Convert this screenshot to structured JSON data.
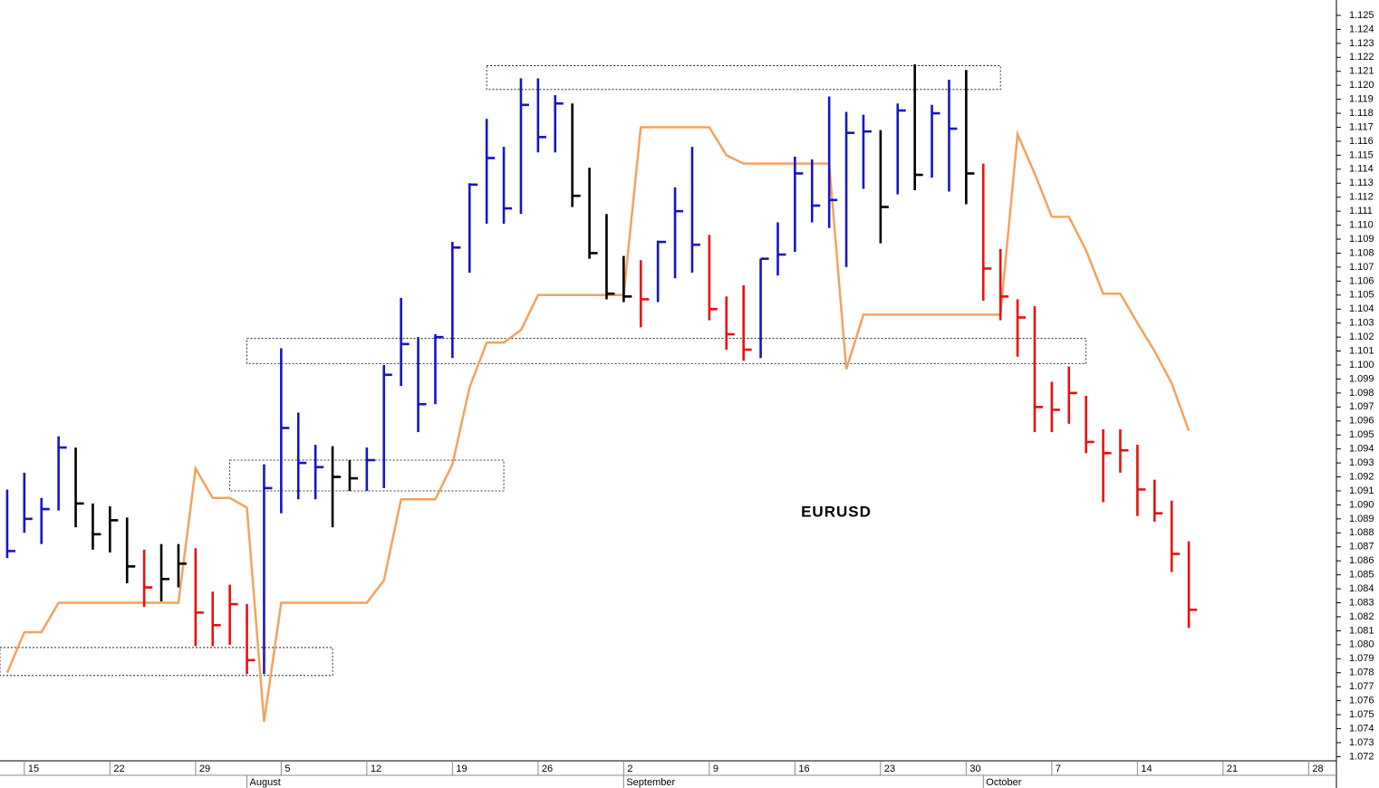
{
  "chart_data": {
    "type": "ohlc",
    "annotation": "EURUSD",
    "x": [
      0,
      1,
      2,
      3,
      4,
      5,
      6,
      7,
      8,
      9,
      10,
      11,
      12,
      13,
      14,
      15,
      16,
      17,
      18,
      19,
      20,
      21,
      22,
      23,
      24,
      25,
      26,
      27,
      28,
      29,
      30,
      31,
      32,
      33,
      34,
      35,
      36,
      37,
      38,
      39,
      40,
      41,
      42,
      43,
      44,
      45,
      46,
      47,
      48,
      49,
      50,
      51,
      52,
      53,
      54,
      55,
      56,
      57,
      58,
      59,
      60,
      61,
      62,
      63,
      64,
      65,
      66,
      67,
      68,
      69
    ],
    "high": [
      1.0911,
      1.0923,
      1.0905,
      1.0949,
      1.0941,
      1.0901,
      1.0899,
      1.0891,
      1.0868,
      1.0872,
      1.0872,
      1.0869,
      1.0838,
      1.0843,
      1.0829,
      1.0929,
      1.1012,
      1.0966,
      1.0943,
      1.0942,
      1.0932,
      1.0941,
      1.1,
      1.1048,
      1.102,
      1.1022,
      1.1088,
      1.113,
      1.1176,
      1.1156,
      1.1205,
      1.1205,
      1.1193,
      1.1187,
      1.1141,
      1.1108,
      1.1078,
      1.1075,
      1.1089,
      1.1127,
      1.1156,
      1.1093,
      1.1049,
      1.1057,
      1.1076,
      1.1102,
      1.1149,
      1.1147,
      1.1192,
      1.1181,
      1.1179,
      1.1168,
      1.1187,
      1.1215,
      1.1186,
      1.1204,
      1.1211,
      1.1144,
      1.1083,
      1.1047,
      1.1042,
      1.0988,
      1.0999,
      1.0978,
      1.0954,
      1.0954,
      1.0943,
      1.0918,
      1.0903,
      1.0874
    ],
    "low": [
      1.0862,
      1.088,
      1.0872,
      1.0896,
      1.0884,
      1.0868,
      1.0866,
      1.0844,
      1.0827,
      1.0831,
      1.0841,
      1.0799,
      1.0799,
      1.08,
      1.0779,
      1.0779,
      1.0894,
      1.0904,
      1.0904,
      1.0884,
      1.091,
      1.091,
      1.0912,
      1.0985,
      1.0952,
      1.0972,
      1.1005,
      1.1066,
      1.1101,
      1.1101,
      1.1108,
      1.1152,
      1.1152,
      1.1113,
      1.1076,
      1.1047,
      1.1045,
      1.1027,
      1.1045,
      1.1062,
      1.1066,
      1.1032,
      1.1011,
      1.1003,
      1.1005,
      1.1064,
      1.1081,
      1.1102,
      1.1098,
      1.107,
      1.1126,
      1.1087,
      1.1122,
      1.1125,
      1.1134,
      1.1124,
      1.1115,
      1.1046,
      1.1032,
      1.1006,
      1.0952,
      1.0952,
      1.0958,
      1.0937,
      1.0902,
      1.0923,
      1.0892,
      1.0888,
      1.0852,
      1.0812
    ],
    "close": [
      1.0867,
      1.089,
      1.0897,
      1.0941,
      1.0901,
      1.0879,
      1.0889,
      1.0856,
      1.0841,
      1.0847,
      1.0858,
      1.0823,
      1.0814,
      1.0829,
      1.0789,
      1.0912,
      1.0955,
      1.093,
      1.0927,
      1.092,
      1.0919,
      1.0932,
      1.0993,
      1.1015,
      1.0972,
      1.102,
      1.1084,
      1.1129,
      1.1148,
      1.1112,
      1.1186,
      1.1163,
      1.1187,
      1.1121,
      1.108,
      1.1051,
      1.1049,
      1.1047,
      1.1088,
      1.111,
      1.1086,
      1.104,
      1.1022,
      1.1011,
      1.1076,
      1.1079,
      1.1137,
      1.1114,
      1.1118,
      1.1166,
      1.1167,
      1.1113,
      1.1182,
      1.1136,
      1.118,
      1.1169,
      1.1137,
      1.1069,
      1.1049,
      1.1034,
      1.097,
      1.0968,
      1.098,
      1.0945,
      1.0937,
      1.0939,
      1.0911,
      1.0894,
      1.0865,
      1.0825
    ],
    "bar_colors": [
      "#1515c8",
      "#1515c8",
      "#1515c8",
      "#1515c8",
      "#000000",
      "#000000",
      "#000000",
      "#000000",
      "#e81010",
      "#000000",
      "#000000",
      "#e81010",
      "#e81010",
      "#e81010",
      "#e81010",
      "#1515c8",
      "#1515c8",
      "#1515c8",
      "#1515c8",
      "#000000",
      "#000000",
      "#1515c8",
      "#1515c8",
      "#1515c8",
      "#1515c8",
      "#1515c8",
      "#1515c8",
      "#1515c8",
      "#1515c8",
      "#1515c8",
      "#1515c8",
      "#1515c8",
      "#1515c8",
      "#000000",
      "#000000",
      "#000000",
      "#000000",
      "#e81010",
      "#1515c8",
      "#1515c8",
      "#1515c8",
      "#e81010",
      "#e81010",
      "#e81010",
      "#1515c8",
      "#1515c8",
      "#1515c8",
      "#1515c8",
      "#1515c8",
      "#1515c8",
      "#1515c8",
      "#000000",
      "#1515c8",
      "#000000",
      "#1515c8",
      "#1515c8",
      "#000000",
      "#e81010",
      "#e81010",
      "#e81010",
      "#e81010",
      "#e81010",
      "#e81010",
      "#e81010",
      "#e81010",
      "#e81010",
      "#e81010",
      "#e81010",
      "#e81010",
      "#e81010"
    ],
    "line": {
      "color": "#f5a25d",
      "values": [
        1.078,
        1.0809,
        1.0809,
        1.083,
        1.083,
        1.083,
        1.083,
        1.083,
        1.083,
        1.083,
        1.083,
        1.0926,
        1.0905,
        1.0905,
        1.0898,
        1.0745,
        1.083,
        1.083,
        1.083,
        1.083,
        1.083,
        1.083,
        1.0846,
        1.0904,
        1.0904,
        1.0904,
        1.0929,
        1.0984,
        1.1016,
        1.1016,
        1.1025,
        1.105,
        1.105,
        1.105,
        1.105,
        1.105,
        1.105,
        1.117,
        1.117,
        1.117,
        1.117,
        1.117,
        1.115,
        1.1144,
        1.1144,
        1.1144,
        1.1144,
        1.1144,
        1.1144,
        1.0997,
        1.1036,
        1.1036,
        1.1036,
        1.1036,
        1.1036,
        1.1036,
        1.1036,
        1.1036,
        1.1036,
        1.1165,
        1.1137,
        1.1106,
        1.1106,
        1.1082,
        1.1051,
        1.1051,
        1.103,
        1.101,
        1.0987,
        1.0953
      ]
    },
    "zones": [
      {
        "x": [
          -0.42,
          19
        ],
        "y": [
          1.0778,
          1.0798
        ]
      },
      {
        "x": [
          13,
          29
        ],
        "y": [
          1.091,
          1.0932
        ]
      },
      {
        "x": [
          14,
          63
        ],
        "y": [
          1.1001,
          1.1019
        ]
      },
      {
        "x": [
          28,
          58
        ],
        "y": [
          1.1197,
          1.1214
        ]
      }
    ],
    "xlim": [
      -0.42,
      77.62
    ],
    "ylim": [
      1.0717,
      1.1261
    ],
    "yticks": [
      1.072,
      1.073,
      1.074,
      1.075,
      1.076,
      1.077,
      1.078,
      1.079,
      {
        "value": 1.08,
        "label": "1.080"
      },
      1.081,
      1.082,
      1.083,
      1.084,
      1.085,
      1.086,
      1.087,
      1.088,
      1.089,
      {
        "value": 1.09,
        "label": "1.090"
      },
      1.091,
      1.092,
      1.093,
      1.094,
      1.095,
      1.096,
      1.097,
      1.098,
      1.099,
      {
        "value": 1.1,
        "label": "1.100"
      },
      1.101,
      1.102,
      1.103,
      1.104,
      1.105,
      1.106,
      1.107,
      1.108,
      1.109,
      {
        "value": 1.11,
        "label": "1.110"
      },
      1.111,
      1.112,
      1.113,
      1.114,
      1.115,
      1.116,
      1.117,
      1.118,
      1.119,
      {
        "value": 1.12,
        "label": "1.120"
      },
      1.121,
      1.122,
      1.123,
      1.124,
      1.125
    ],
    "xticks": [
      {
        "value": 1,
        "label": "15"
      },
      {
        "value": 6,
        "label": "22"
      },
      {
        "value": 11,
        "label": "29"
      },
      {
        "value": 16,
        "label": "5"
      },
      {
        "value": 21,
        "label": "12"
      },
      {
        "value": 26,
        "label": "19"
      },
      {
        "value": 31,
        "label": "26"
      },
      {
        "value": 36,
        "label": "2"
      },
      {
        "value": 41,
        "label": "9"
      },
      {
        "value": 46,
        "label": "16"
      },
      {
        "value": 51,
        "label": "23"
      },
      {
        "value": 56,
        "label": "30"
      },
      {
        "value": 61,
        "label": "7"
      },
      {
        "value": 66,
        "label": "14"
      },
      {
        "value": 71,
        "label": "21"
      },
      {
        "value": 76,
        "label": "28"
      }
    ],
    "month_ticks": [
      {
        "value": 14,
        "label": "August"
      },
      {
        "value": 36,
        "label": "September"
      },
      {
        "value": 57,
        "label": "October"
      }
    ]
  }
}
